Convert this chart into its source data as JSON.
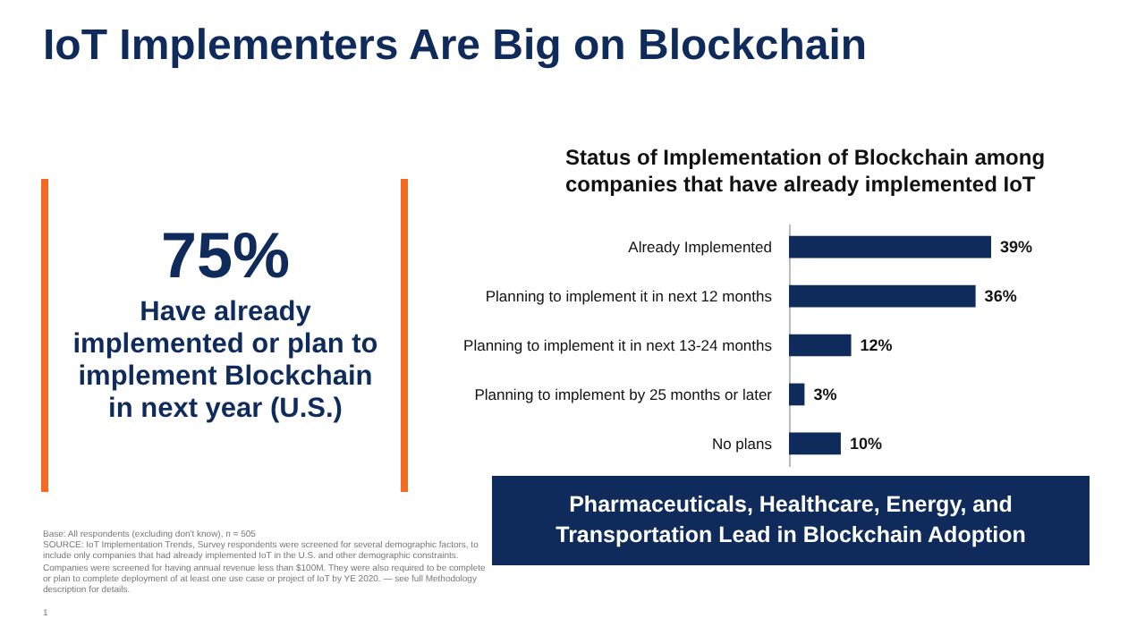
{
  "chart_data": [
    {
      "type": "other",
      "title": "IoT Implementers Are Big on Blockchain",
      "annotations": [
        "75%",
        "Have already implemented or plan to implement Blockchain in next year (U.S.)",
        "Base: All respondents (excluding don't know), n = 505",
        "SOURCE: IoT Implementation Trends, Survey respondents were screened for several demographic factors, to include only companies that had already implemented IoT in the U.S. and other demographic constraints. Companies were screened for having annual revenue less than $100M. They were also required to be complete or plan to complete deployment of at least one use case or project of IoT by YE 2020. — see full Methodology description for details.",
        "1"
      ]
    },
    {
      "type": "bar",
      "orientation": "horizontal",
      "title": "Status of Implementation of Blockchain among companies that have already implemented IoT",
      "categories": [
        "Already Implemented",
        "Planning to implement it in next 12 months",
        "Planning to implement it in next 13-24 months",
        "Planning to implement by 25 months or later",
        "No plans"
      ],
      "values": [
        39,
        36,
        12,
        3,
        10
      ],
      "value_labels": [
        "39%",
        "36%",
        "12%",
        "3%",
        "10%"
      ],
      "color": "#0f2b5b",
      "tick_labels": "y",
      "annotations": [
        "Pharmaceuticals, Healthcare, Energy, and Transportation Lead in Blockchain Adoption"
      ]
    }
  ]
}
